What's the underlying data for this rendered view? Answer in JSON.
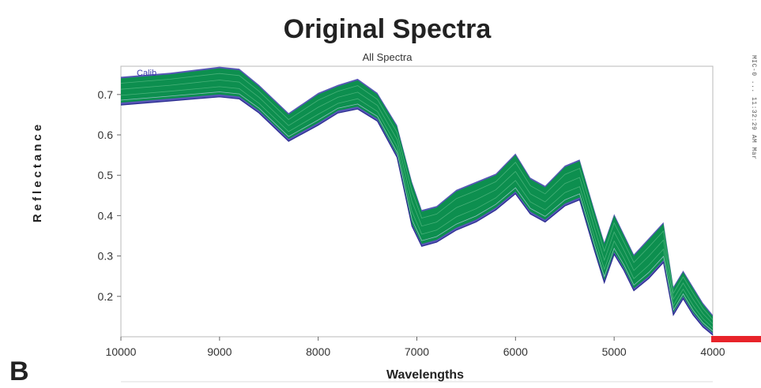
{
  "panel_label": "B",
  "side_note": "MIC-0 ...  11:32:29 AM Mar",
  "colors": {
    "primary_series": "#0d8f4f",
    "secondary_series": "#3a3aa8",
    "frame": "#b8b8b8",
    "accent_bar": "#e8232a"
  },
  "chart_data": {
    "type": "line",
    "title": "Original Spectra",
    "subtitle": "All Spectra",
    "xlabel": "Wavelengths",
    "ylabel": "Reflectance",
    "legend_text": "Calib",
    "xlim": [
      10000,
      4000
    ],
    "ylim": [
      0.1,
      0.77
    ],
    "x_reversed": true,
    "xticks": [
      10000,
      9000,
      8000,
      7000,
      6000,
      5000,
      4000
    ],
    "yticks": [
      0.2,
      0.3,
      0.4,
      0.5,
      0.6,
      0.7
    ],
    "grid": false,
    "series": [
      {
        "x": [
          10000,
          9500,
          9000,
          8800,
          8600,
          8300,
          8000,
          7800,
          7600,
          7400,
          7200,
          7050,
          6950,
          6800,
          6600,
          6400,
          6200,
          6000,
          5850,
          5700,
          5500,
          5350,
          5200,
          5100,
          5000,
          4900,
          4800,
          4650,
          4500,
          4400,
          4300,
          4200,
          4100,
          4000
        ],
        "y_upper": [
          0.74,
          0.75,
          0.765,
          0.76,
          0.72,
          0.65,
          0.7,
          0.72,
          0.735,
          0.7,
          0.62,
          0.48,
          0.41,
          0.42,
          0.46,
          0.48,
          0.5,
          0.55,
          0.49,
          0.47,
          0.52,
          0.535,
          0.41,
          0.33,
          0.4,
          0.35,
          0.3,
          0.34,
          0.38,
          0.22,
          0.26,
          0.22,
          0.18,
          0.15
        ],
        "y_lower": [
          0.68,
          0.69,
          0.7,
          0.695,
          0.66,
          0.59,
          0.63,
          0.66,
          0.67,
          0.64,
          0.55,
          0.38,
          0.33,
          0.34,
          0.37,
          0.39,
          0.42,
          0.46,
          0.41,
          0.39,
          0.43,
          0.445,
          0.32,
          0.24,
          0.31,
          0.27,
          0.22,
          0.25,
          0.29,
          0.16,
          0.2,
          0.16,
          0.13,
          0.11
        ]
      }
    ]
  }
}
